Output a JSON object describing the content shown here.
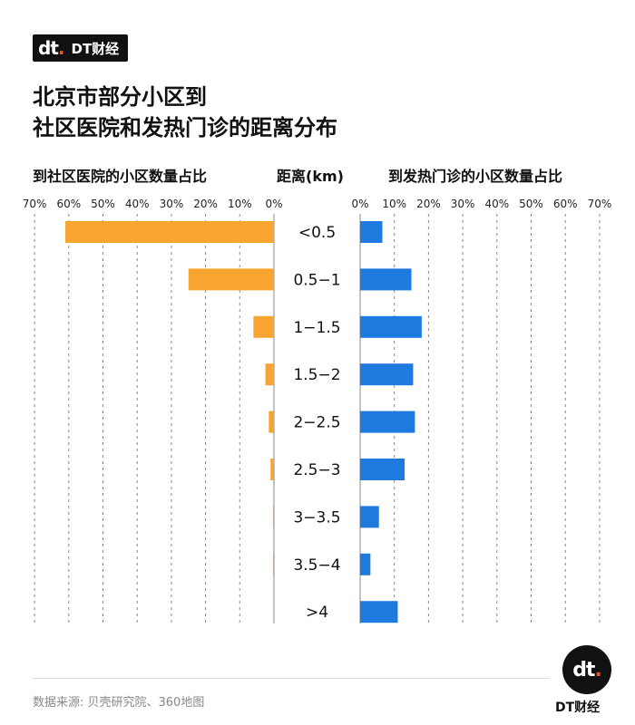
{
  "brand": {
    "name": "DT财经",
    "mark": "dt"
  },
  "title_line1": "北京市部分小区到",
  "title_line2": "社区医院和发热门诊的距离分布",
  "headers": {
    "left": "到社区医院的小区数量占比",
    "middle": "距离(km)",
    "right": "到发热门诊的小区数量占比"
  },
  "source": "数据来源: 贝壳研究院、360地图",
  "chart_data": {
    "type": "bar",
    "orientation": "horizontal-butterfly",
    "categories": [
      "<0.5",
      "0.5−1",
      "1−1.5",
      "1.5−2",
      "2−2.5",
      "2.5−3",
      "3−3.5",
      "3.5−4",
      ">4"
    ],
    "series": [
      {
        "name": "到社区医院的小区数量占比",
        "color": "#f7a530",
        "values": [
          61,
          25,
          6,
          2.5,
          1.5,
          1,
          0.3,
          0.3,
          0
        ]
      },
      {
        "name": "到发热门诊的小区数量占比",
        "color": "#1f7ae0",
        "values": [
          6.5,
          15,
          18,
          15.5,
          16,
          13,
          5.5,
          3,
          11
        ]
      }
    ],
    "xlim": [
      0,
      70
    ],
    "tick_labels": [
      "0%",
      "10%",
      "20%",
      "30%",
      "40%",
      "50%",
      "60%",
      "70%"
    ],
    "grid": true
  }
}
